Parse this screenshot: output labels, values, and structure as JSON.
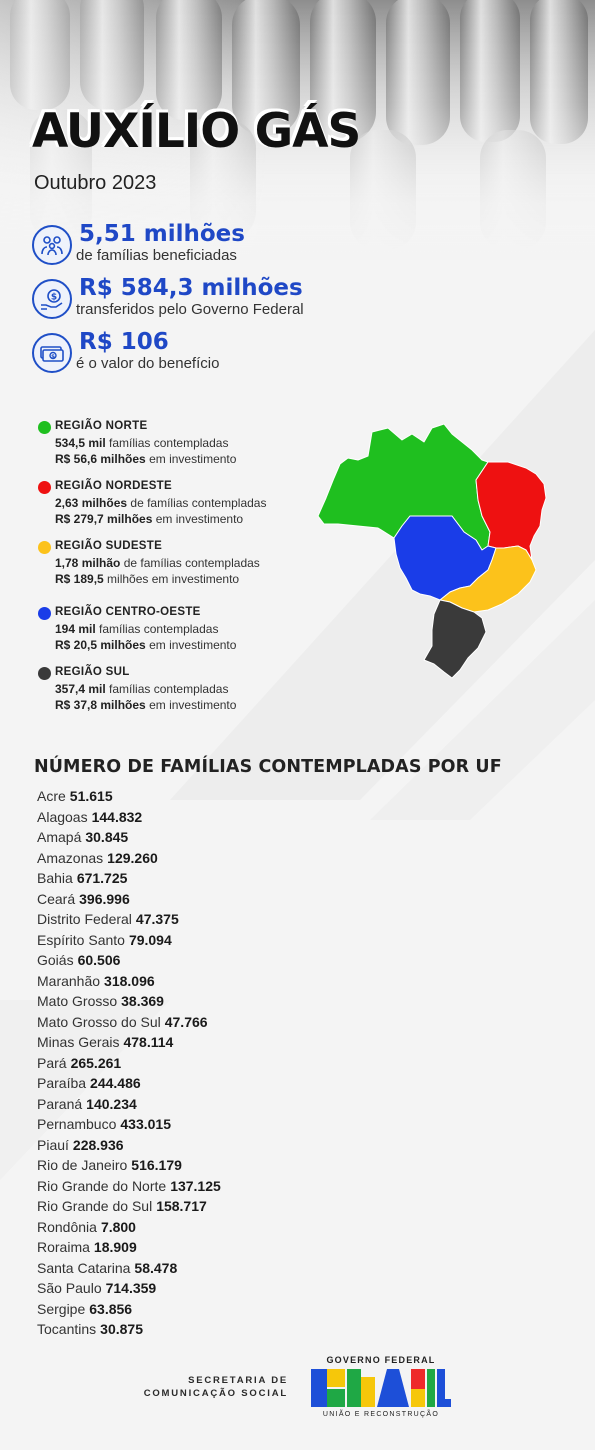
{
  "title": "AUXÍLIO GÁS",
  "subtitle": "Outubro 2023",
  "highlights": [
    {
      "icon": "family-icon",
      "value": "5,51 milhões",
      "label": "de famílias beneficiadas"
    },
    {
      "icon": "money-hand-icon",
      "value": "R$ 584,3 milhões",
      "label": "transferidos pelo Governo Federal"
    },
    {
      "icon": "banknote-icon",
      "value": "R$ 106",
      "label": "é o valor do benefício"
    }
  ],
  "regions": [
    {
      "name": "REGIÃO NORTE",
      "color": "#1fbf1f",
      "families": "534,5 mil",
      "families_suffix": "famílias contempladas",
      "investment": "R$ 56,6 milhões",
      "investment_suffix": "em investimento"
    },
    {
      "name": "REGIÃO NORDESTE",
      "color": "#ee1111",
      "families": "2,63 milhões",
      "families_suffix": "de famílias contempladas",
      "investment": "R$ 279,7 milhões",
      "investment_suffix": "em investimento"
    },
    {
      "name": "REGIÃO SUDESTE",
      "color": "#fcc21b",
      "families": "1,78 milhão",
      "families_suffix": "de famílias contempladas",
      "investment": "R$ 189,5",
      "investment_suffix": "milhões em investimento"
    },
    {
      "name": "REGIÃO CENTRO-OESTE",
      "color": "#1a3de8",
      "families": "194 mil",
      "families_suffix": "famílias contempladas",
      "investment": "R$ 20,5 milhões",
      "investment_suffix": "em investimento"
    },
    {
      "name": "REGIÃO SUL",
      "color": "#3a3a3a",
      "families": "357,4 mil",
      "families_suffix": "famílias contempladas",
      "investment": "R$ 37,8 milhões",
      "investment_suffix": "em investimento"
    }
  ],
  "uf_heading": "NÚMERO DE FAMÍLIAS CONTEMPLADAS POR UF",
  "ufs": [
    {
      "name": "Acre",
      "value": "51.615"
    },
    {
      "name": "Alagoas",
      "value": "144.832"
    },
    {
      "name": "Amapá",
      "value": "30.845"
    },
    {
      "name": "Amazonas",
      "value": "129.260"
    },
    {
      "name": "Bahia",
      "value": "671.725"
    },
    {
      "name": "Ceará",
      "value": "396.996"
    },
    {
      "name": "Distrito Federal",
      "value": "47.375"
    },
    {
      "name": "Espírito Santo",
      "value": "79.094"
    },
    {
      "name": "Goiás",
      "value": "60.506"
    },
    {
      "name": "Maranhão",
      "value": "318.096"
    },
    {
      "name": "Mato Grosso",
      "value": "38.369"
    },
    {
      "name": "Mato Grosso do Sul",
      "value": "47.766"
    },
    {
      "name": "Minas Gerais",
      "value": "478.114"
    },
    {
      "name": "Pará",
      "value": "265.261"
    },
    {
      "name": "Paraíba",
      "value": "244.486"
    },
    {
      "name": "Paraná",
      "value": "140.234"
    },
    {
      "name": "Pernambuco",
      "value": "433.015"
    },
    {
      "name": "Piauí",
      "value": "228.936"
    },
    {
      "name": "Rio de Janeiro",
      "value": "516.179"
    },
    {
      "name": "Rio Grande do Norte",
      "value": "137.125"
    },
    {
      "name": "Rio Grande do Sul",
      "value": "158.717"
    },
    {
      "name": "Rondônia",
      "value": "7.800"
    },
    {
      "name": "Roraima",
      "value": "18.909"
    },
    {
      "name": "Santa Catarina",
      "value": "58.478"
    },
    {
      "name": "São Paulo",
      "value": "714.359"
    },
    {
      "name": "Sergipe",
      "value": "63.856"
    },
    {
      "name": "Tocantins",
      "value": "30.875"
    }
  ],
  "footer": {
    "secom_line1": "SECRETARIA DE",
    "secom_line2": "COMUNICAÇÃO SOCIAL",
    "gov_top": "GOVERNO FEDERAL",
    "gov_word": "BRASIL",
    "gov_bottom": "UNIÃO E RECONSTRUÇÃO"
  }
}
